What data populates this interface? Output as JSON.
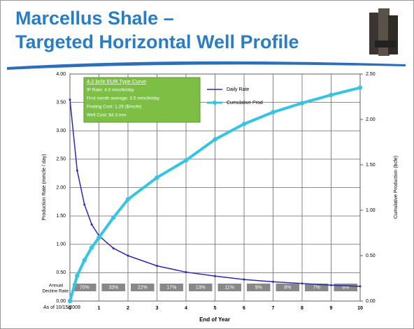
{
  "chart_data": {
    "type": "line",
    "title_lines": [
      "Marcellus Shale –",
      "Targeted Horizontal Well Profile"
    ],
    "x_label": "End of Year",
    "y_label": "Production Rate (mmcfe / day)",
    "y2_label": "Cumulative Production (bcfe)",
    "x": [
      0,
      0.25,
      0.5,
      0.75,
      1,
      1.5,
      2,
      3,
      4,
      5,
      6,
      7,
      8,
      9,
      10
    ],
    "series": [
      {
        "name": "Daily Rate",
        "color": "#2a2ab4",
        "values": [
          3.55,
          2.3,
          1.7,
          1.35,
          1.15,
          0.93,
          0.8,
          0.62,
          0.51,
          0.44,
          0.38,
          0.34,
          0.31,
          0.28,
          0.26
        ]
      },
      {
        "name": "Cumulative Prod",
        "color": "#35c4e4",
        "axis": "y2",
        "values": [
          0,
          0.28,
          0.45,
          0.59,
          0.7,
          0.92,
          1.12,
          1.36,
          1.55,
          1.78,
          1.95,
          2.08,
          2.18,
          2.27,
          2.35
        ]
      }
    ],
    "xlim": [
      0,
      10
    ],
    "xticks": [
      0,
      1,
      2,
      3,
      4,
      5,
      6,
      7,
      8,
      9,
      10
    ],
    "ylim": [
      0,
      4
    ],
    "yticks": [
      {
        "value": 0,
        "label": "0.00"
      },
      {
        "value": 0.5,
        "label": "0.50"
      },
      {
        "value": 1,
        "label": "1.00"
      },
      {
        "value": 1.5,
        "label": "1.50"
      },
      {
        "value": 2,
        "label": "2.00"
      },
      {
        "value": 2.5,
        "label": "2.50"
      },
      {
        "value": 3,
        "label": "3.00"
      },
      {
        "value": 3.5,
        "label": "3.50"
      },
      {
        "value": 4,
        "label": "4.00"
      }
    ],
    "y2lim": [
      0,
      2.5
    ],
    "y2ticks": [
      {
        "value": 0,
        "label": "0.00"
      },
      {
        "value": 0.5,
        "label": "0.50"
      },
      {
        "value": 1,
        "label": "1.00"
      },
      {
        "value": 1.5,
        "label": "1.50"
      },
      {
        "value": 2,
        "label": "2.00"
      },
      {
        "value": 2.5,
        "label": "2.50"
      }
    ],
    "grid": true,
    "info_box": [
      "4.2 bcfe EUR Type Curve",
      "IP Rate: 4.0 mmcfe/day",
      "First month average: 3.5 mmcfe/day",
      "Finding Cost: 1.29 ($/mcfe)",
      "Well Cost: $4.3 mm"
    ],
    "decline_label": [
      "Annual",
      "Decline Rate:"
    ],
    "decline_rates": [
      "70%",
      "33%",
      "22%",
      "17%",
      "13%",
      "11%",
      "9%",
      "8%",
      "7%",
      "6%"
    ],
    "as_of": "As of 10/15/2009"
  }
}
